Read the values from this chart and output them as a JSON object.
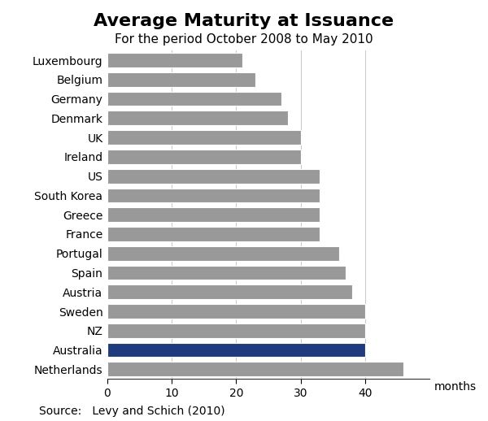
{
  "title": "Average Maturity at Issuance",
  "subtitle": "For the period October 2008 to May 2010",
  "source": "Source:   Levy and Schich (2010)",
  "xlabel": "months",
  "countries": [
    "Netherlands",
    "Australia",
    "NZ",
    "Sweden",
    "Austria",
    "Spain",
    "Portugal",
    "France",
    "Greece",
    "South Korea",
    "US",
    "Ireland",
    "UK",
    "Denmark",
    "Germany",
    "Belgium",
    "Luxembourg"
  ],
  "values": [
    46,
    40,
    40,
    40,
    38,
    37,
    36,
    33,
    33,
    33,
    33,
    30,
    30,
    28,
    27,
    23,
    21
  ],
  "bar_colors": [
    "#999999",
    "#1f3a7d",
    "#999999",
    "#999999",
    "#999999",
    "#999999",
    "#999999",
    "#999999",
    "#999999",
    "#999999",
    "#999999",
    "#999999",
    "#999999",
    "#999999",
    "#999999",
    "#999999",
    "#999999"
  ],
  "xlim": [
    0,
    50
  ],
  "xticks": [
    0,
    10,
    20,
    30,
    40
  ],
  "background_color": "#ffffff",
  "title_fontsize": 16,
  "subtitle_fontsize": 11,
  "tick_fontsize": 10,
  "label_fontsize": 10,
  "source_fontsize": 10,
  "grid_color": "#cccccc",
  "bar_edge_color": "#ffffff"
}
